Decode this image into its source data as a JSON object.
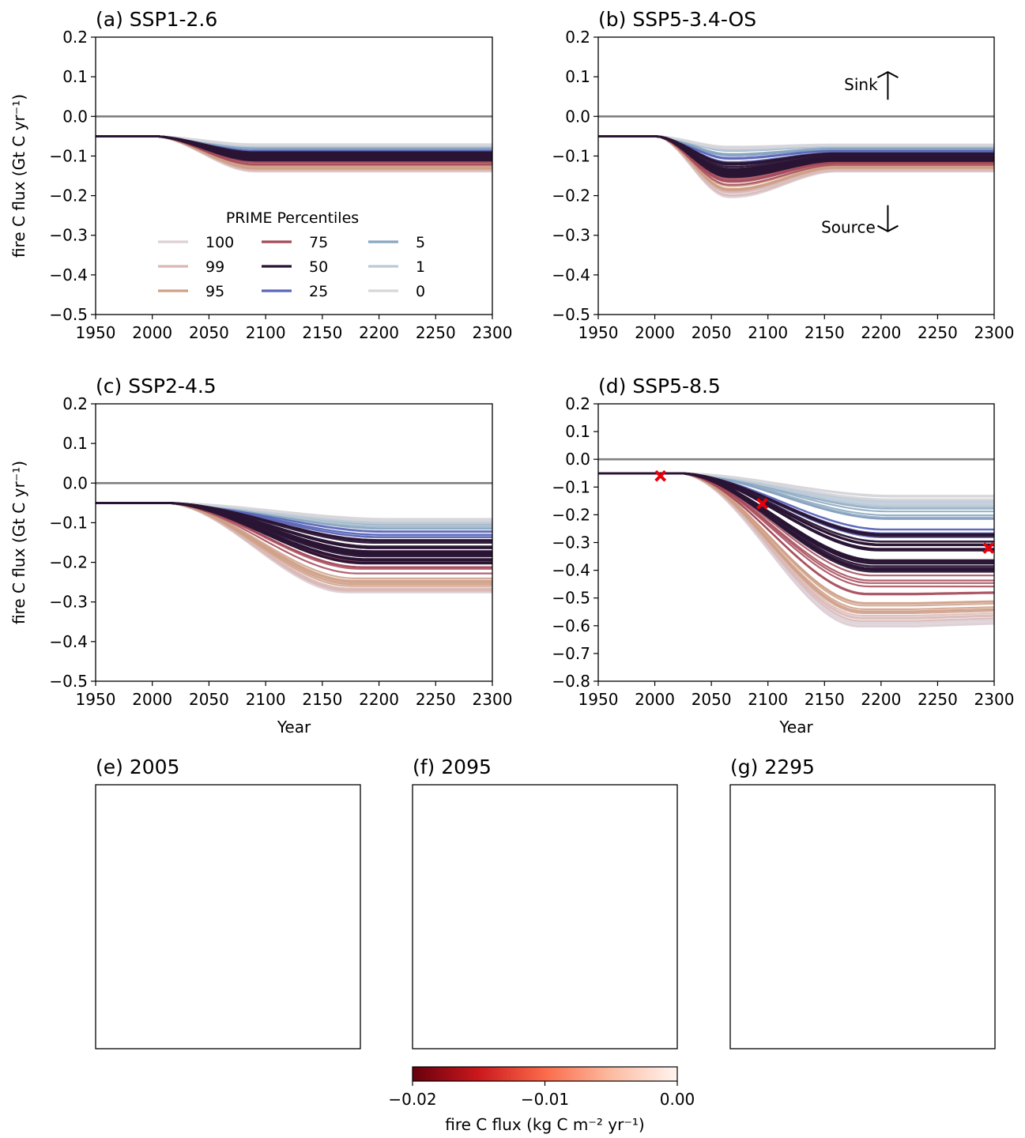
{
  "chart_data": [
    {
      "type": "line",
      "title": "(a) SSP1-2.6",
      "xlabel": "",
      "ylabel": "fire C flux (Gt C yr⁻¹)",
      "xlim": [
        1950,
        2300
      ],
      "ylim": [
        -0.5,
        0.2
      ],
      "xticks": [
        1950,
        2000,
        2050,
        2100,
        2150,
        2200,
        2250,
        2300
      ],
      "yticks": [
        0.2,
        0.1,
        0.0,
        -0.1,
        -0.2,
        -0.3,
        -0.4,
        -0.5
      ],
      "ytick_labels": [
        "0.2",
        "0.1",
        "0.0",
        "−0.1",
        "−0.2",
        "−0.3",
        "−0.4",
        "−0.5"
      ],
      "reference_line_y": 0.0,
      "start_value": -0.05,
      "end_value_range": [
        -0.14,
        -0.07
      ],
      "legend": {
        "title": "PRIME Percentiles",
        "position": "lower-left",
        "entries": [
          {
            "label": "100",
            "color": "#ddd0d6"
          },
          {
            "label": "99",
            "color": "#d9b8b6"
          },
          {
            "label": "95",
            "color": "#cf9f86"
          },
          {
            "label": "75",
            "color": "#a54857"
          },
          {
            "label": "50",
            "color": "#2a1435"
          },
          {
            "label": "25",
            "color": "#5a66b8"
          },
          {
            "label": "5",
            "color": "#88a6bf"
          },
          {
            "label": "1",
            "color": "#bccad7"
          },
          {
            "label": "0",
            "color": "#d6d6da"
          }
        ]
      }
    },
    {
      "type": "line",
      "title": "(b) SSP5-3.4-OS",
      "xlabel": "",
      "ylabel": "",
      "xlim": [
        1950,
        2300
      ],
      "ylim": [
        -0.5,
        0.2
      ],
      "xticks": [
        1950,
        2000,
        2050,
        2100,
        2150,
        2200,
        2250,
        2300
      ],
      "yticks": [
        0.2,
        0.1,
        0.0,
        -0.1,
        -0.2,
        -0.3,
        -0.4,
        -0.5
      ],
      "ytick_labels": [
        "0.2",
        "0.1",
        "0.0",
        "−0.1",
        "−0.2",
        "−0.3",
        "−0.4",
        "−0.5"
      ],
      "reference_line_y": 0.0,
      "start_value": -0.05,
      "trough_value_range": [
        -0.18,
        -0.08
      ],
      "end_value_range": [
        -0.14,
        -0.07
      ],
      "annotations": [
        {
          "text": "Sink",
          "arrow": "up",
          "x": 2250,
          "y": 0.08
        },
        {
          "text": "Source",
          "arrow": "down",
          "x": 2250,
          "y": -0.28
        }
      ]
    },
    {
      "type": "line",
      "title": "(c) SSP2-4.5",
      "xlabel": "Year",
      "ylabel": "fire C flux (Gt C yr⁻¹)",
      "xlim": [
        1950,
        2300
      ],
      "ylim": [
        -0.5,
        0.2
      ],
      "xticks": [
        1950,
        2000,
        2050,
        2100,
        2150,
        2200,
        2250,
        2300
      ],
      "yticks": [
        0.2,
        0.1,
        0.0,
        -0.1,
        -0.2,
        -0.3,
        -0.4,
        -0.5
      ],
      "ytick_labels": [
        "0.2",
        "0.1",
        "0.0",
        "−0.1",
        "−0.2",
        "−0.3",
        "−0.4",
        "−0.5"
      ],
      "reference_line_y": 0.0,
      "start_value": -0.05,
      "end_value_range": [
        -0.28,
        -0.09
      ]
    },
    {
      "type": "line",
      "title": "(d) SSP5-8.5",
      "xlabel": "Year",
      "ylabel": "",
      "xlim": [
        1950,
        2300
      ],
      "ylim": [
        -0.8,
        0.2
      ],
      "xticks": [
        1950,
        2000,
        2050,
        2100,
        2150,
        2200,
        2250,
        2300
      ],
      "yticks": [
        0.2,
        0.1,
        0.0,
        -0.1,
        -0.2,
        -0.3,
        -0.4,
        -0.5,
        -0.6,
        -0.7,
        -0.8
      ],
      "ytick_labels": [
        "0.2",
        "0.1",
        "0.0",
        "−0.1",
        "−0.2",
        "−0.3",
        "−0.4",
        "−0.5",
        "−0.6",
        "−0.7",
        "−0.8"
      ],
      "reference_line_y": 0.0,
      "start_value": -0.05,
      "end_value_range": [
        -0.61,
        -0.13
      ],
      "markers": [
        {
          "x": 2005,
          "y": -0.06,
          "symbol": "x",
          "color": "#e8000b"
        },
        {
          "x": 2095,
          "y": -0.16,
          "symbol": "x",
          "color": "#e8000b"
        },
        {
          "x": 2295,
          "y": -0.32,
          "symbol": "x",
          "color": "#e8000b"
        }
      ]
    },
    {
      "type": "heatmap",
      "title": "(e) 2005",
      "projection": "north-polar-stereographic",
      "ocean_color": "#dffcfd"
    },
    {
      "type": "heatmap",
      "title": "(f) 2095",
      "projection": "north-polar-stereographic",
      "ocean_color": "#dffcfd"
    },
    {
      "type": "heatmap",
      "title": "(g) 2295",
      "projection": "north-polar-stereographic",
      "ocean_color": "#dffcfd"
    }
  ],
  "colorbar": {
    "label": "fire C flux (kg C m⁻² yr⁻¹)",
    "range": [
      -0.02,
      0.0
    ],
    "ticks": [
      "−0.02",
      "−0.01",
      "0.00"
    ],
    "colormap": "Reds_r",
    "colors": [
      "#67000d",
      "#cb181d",
      "#fb6a4a",
      "#fcbba1",
      "#fff5f0"
    ]
  }
}
